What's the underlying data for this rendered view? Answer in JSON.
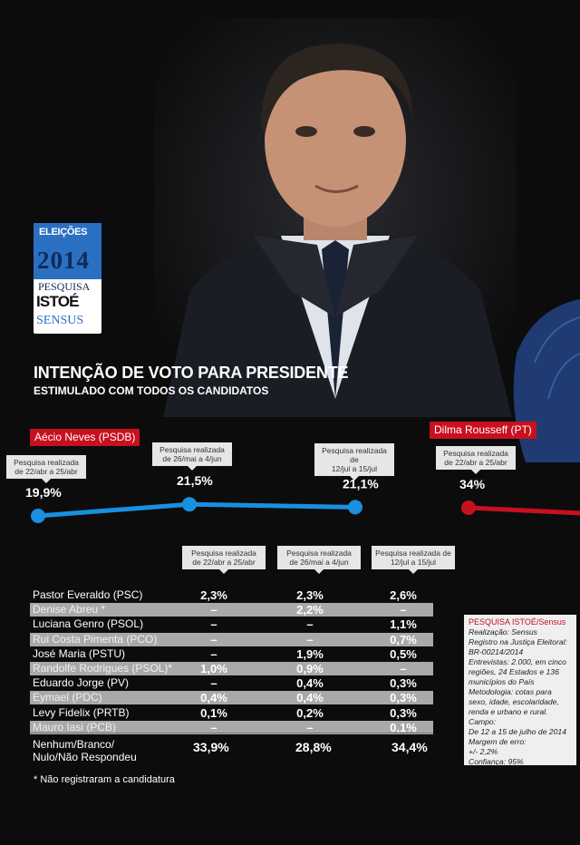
{
  "colors": {
    "aecio": "#1a8fe0",
    "dilma": "#c8101f",
    "background": "#0c0c0d"
  },
  "logo": {
    "line1": "ELEIÇÕES",
    "line2": "2014",
    "line3": "PESQUISA",
    "line4": "ISTOÉ",
    "line5": "SENSUS"
  },
  "header": {
    "title": "INTENÇÃO DE VOTO PARA PRESIDENTE",
    "subtitle": "ESTIMULADO COM TODOS OS CANDIDATOS"
  },
  "chart_data": {
    "type": "line",
    "series": [
      {
        "name": "Aécio Neves (PSDB)",
        "periods": [
          "Pesquisa realizada de 22/abr a 25/abr",
          "Pesquisa realizada de 26/mai a 4/jun",
          "Pesquisa realizada de 12/jul a 15/jul"
        ],
        "values": [
          19.9,
          21.5,
          21.1
        ],
        "labels": [
          "19,9%",
          "21,5%",
          "21,1%"
        ]
      },
      {
        "name": "Dilma Rousseff (PT)",
        "periods": [
          "Pesquisa realizada de 22/abr a 25/abr"
        ],
        "values": [
          34
        ],
        "labels": [
          "34%"
        ]
      }
    ]
  },
  "callouts": {
    "aecio": [
      [
        "Pesquisa realizada",
        "de 22/abr a 25/abr"
      ],
      [
        "Pesquisa realizada",
        "de 26/mai a 4/jun"
      ],
      [
        "Pesquisa realizada de",
        "12/jul a 15/jul"
      ]
    ],
    "dilma": [
      [
        "Pesquisa realizada",
        "de 22/abr a 25/abr"
      ]
    ]
  },
  "table": {
    "headers": [
      [
        "Pesquisa realizada",
        "de 22/abr a 25/abr"
      ],
      [
        "Pesquisa realizada",
        "de 26/mai a 4/jun"
      ],
      [
        "Pesquisa realizada de",
        "12/jul a 15/jul"
      ]
    ],
    "rows": [
      {
        "name": "Pastor Everaldo (PSC)",
        "values": [
          "2,3%",
          "2,3%",
          "2,6%"
        ]
      },
      {
        "name": "Denise Abreu *",
        "values": [
          "–",
          "2,2%",
          "–"
        ]
      },
      {
        "name": "Luciana Genro (PSOL)",
        "values": [
          "–",
          "–",
          "1,1%"
        ]
      },
      {
        "name": "Rui Costa Pimenta (PCO)",
        "values": [
          "–",
          "–",
          "0,7%"
        ]
      },
      {
        "name": "José Maria (PSTU)",
        "values": [
          "–",
          "1,9%",
          "0,5%"
        ]
      },
      {
        "name": "Randolfe Rodrigues (PSOL)*",
        "values": [
          "1,0%",
          "0,9%",
          "–"
        ]
      },
      {
        "name": "Eduardo Jorge (PV)",
        "values": [
          "–",
          "0,4%",
          "0,3%"
        ]
      },
      {
        "name": "Eymael (PDC)",
        "values": [
          "0,4%",
          "0,4%",
          "0,3%"
        ]
      },
      {
        "name": "Levy Fidelix (PRTB)",
        "values": [
          "0,1%",
          "0,2%",
          "0,3%"
        ]
      },
      {
        "name": "Mauro Iasi (PCB)",
        "values": [
          "–",
          "–",
          "0,1%"
        ]
      }
    ],
    "total": {
      "name_lines": [
        "Nenhum/Branco/",
        "Nulo/Não Respondeu"
      ],
      "values": [
        "33,9%",
        "28,8%",
        "34,4%"
      ]
    }
  },
  "footnote": "* Não registraram a candidatura",
  "info_box": {
    "heading": "PESQUISA ISTOÉ/Sensus",
    "lines": [
      "Realização: Sensus",
      "Registro na Justiça Eleitoral:",
      "BR-00214/2014",
      "Entrevistas: 2.000, em cinco",
      "regiões, 24 Estados e 136",
      "municípios do País",
      "Metodologia: cotas para",
      "sexo, idade, escolaridade,",
      "renda e urbano e rural.",
      "Campo:",
      "De 12 a 15 de julho de 2014",
      "Margem de erro:",
      "+/- 2,2%",
      "Confiança: 95%"
    ]
  }
}
